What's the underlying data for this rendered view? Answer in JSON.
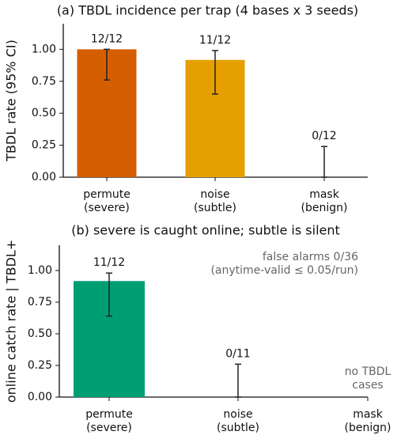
{
  "chart_data": [
    {
      "type": "bar",
      "title": "(a) TBDL incidence per trap (4 bases x 3 seeds)",
      "y_label": "TBDL rate (95% CI)",
      "categories": [
        "permute\n(severe)",
        "noise\n(subtle)",
        "mask\n(benign)"
      ],
      "values": [
        1.0,
        0.917,
        0
      ],
      "value_labels": [
        "12/12",
        "11/12",
        "0/12"
      ],
      "error_low": [
        0.76,
        0.65,
        0
      ],
      "error_high": [
        1.0,
        0.99,
        0.24
      ],
      "colors": [
        "#d55e00",
        "#e69f00",
        "#cccccc"
      ],
      "ylim": [
        0,
        1.2
      ],
      "yticks": [
        {
          "value": 0,
          "label": "0.00"
        },
        {
          "value": 0.25,
          "label": "0.25"
        },
        {
          "value": 0.5,
          "label": "0.50"
        },
        {
          "value": 0.75,
          "label": "0.75"
        },
        {
          "value": 1,
          "label": "1.00"
        }
      ]
    },
    {
      "type": "bar",
      "title": "(b) severe is caught online; subtle is silent",
      "y_label": "online catch rate | TBDL+",
      "categories": [
        "permute\n(severe)",
        "noise\n(subtle)",
        "mask\n(benign)"
      ],
      "values": [
        0.917,
        0,
        null
      ],
      "value_labels": [
        "11/12",
        "0/11",
        null
      ],
      "error_low": [
        0.64,
        0,
        null
      ],
      "error_high": [
        0.98,
        0.26,
        null
      ],
      "colors": [
        "#009e73",
        "#009e73",
        "#009e73"
      ],
      "annotations": [
        "false alarms 0/36\n(anytime-valid ≤ 0.05/run)",
        "no TBDL\ncases"
      ],
      "ylim": [
        0,
        1.2
      ],
      "yticks": [
        {
          "value": 0,
          "label": "0.00"
        },
        {
          "value": 0.25,
          "label": "0.25"
        },
        {
          "value": 0.5,
          "label": "0.50"
        },
        {
          "value": 0.75,
          "label": "0.75"
        },
        {
          "value": 1,
          "label": "1.00"
        }
      ]
    }
  ]
}
